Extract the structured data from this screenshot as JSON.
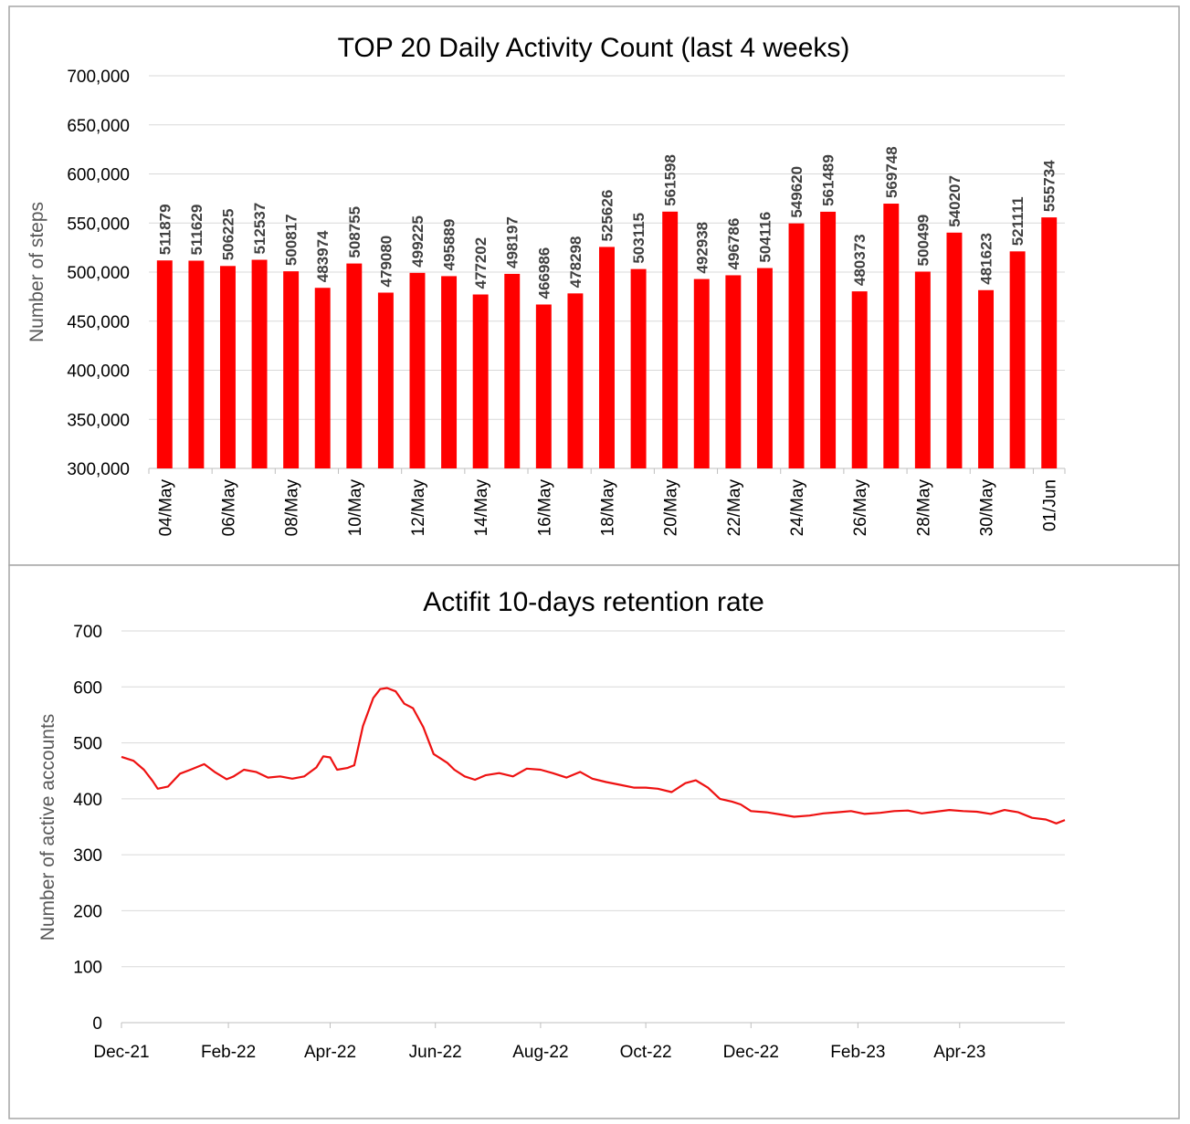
{
  "colors": {
    "bar": "#ff0000",
    "line": "#ee1111",
    "frame": "#a6a6a6",
    "grid": "#d9d9d9"
  },
  "chart_data": [
    {
      "type": "bar",
      "title": "TOP 20 Daily Activity Count (last 4 weeks)",
      "xlabel": "",
      "ylabel": "Number of steps",
      "ylim": [
        300000,
        700000
      ],
      "yticks": [
        300000,
        350000,
        400000,
        450000,
        500000,
        550000,
        600000,
        650000,
        700000
      ],
      "ytick_labels": [
        "300,000",
        "350,000",
        "400,000",
        "450,000",
        "500,000",
        "550,000",
        "600,000",
        "650,000",
        "700,000"
      ],
      "grid": true,
      "categories": [
        "04/May",
        "05/May",
        "06/May",
        "07/May",
        "08/May",
        "09/May",
        "10/May",
        "11/May",
        "12/May",
        "13/May",
        "14/May",
        "15/May",
        "16/May",
        "17/May",
        "18/May",
        "19/May",
        "20/May",
        "21/May",
        "22/May",
        "23/May",
        "24/May",
        "25/May",
        "26/May",
        "27/May",
        "28/May",
        "29/May",
        "30/May",
        "31/May",
        "01/Jun"
      ],
      "xtick_labels": [
        "04/May",
        "",
        "06/May",
        "",
        "08/May",
        "",
        "10/May",
        "",
        "12/May",
        "",
        "14/May",
        "",
        "16/May",
        "",
        "18/May",
        "",
        "20/May",
        "",
        "22/May",
        "",
        "24/May",
        "",
        "26/May",
        "",
        "28/May",
        "",
        "30/May",
        "",
        "01/Jun"
      ],
      "values": [
        511879,
        511629,
        506225,
        512537,
        500817,
        483974,
        508755,
        479080,
        499225,
        495889,
        477202,
        498197,
        466986,
        478298,
        525626,
        503115,
        561598,
        492938,
        496786,
        504116,
        549620,
        561489,
        480373,
        569748,
        500499,
        540207,
        481623,
        521111,
        555734
      ],
      "data_labels": [
        "511879",
        "511629",
        "506225",
        "512537",
        "500817",
        "483974",
        "508755",
        "479080",
        "499225",
        "495889",
        "477202",
        "498197",
        "466986",
        "478298",
        "525626",
        "503115",
        "561598",
        "492938",
        "496786",
        "504116",
        "549620",
        "561489",
        "480373",
        "569748",
        "500499",
        "540207",
        "481623",
        "521111",
        "555734"
      ]
    },
    {
      "type": "line",
      "title": "Actifit 10-days retention rate",
      "xlabel": "",
      "ylabel": "Number of active accounts",
      "ylim": [
        0,
        700
      ],
      "yticks": [
        0,
        100,
        200,
        300,
        400,
        500,
        600,
        700
      ],
      "ytick_labels": [
        "0",
        "100",
        "200",
        "300",
        "400",
        "500",
        "600",
        "700"
      ],
      "xlim": [
        "2021-12-01",
        "2023-06-01"
      ],
      "xticks": [
        "2021-12-01",
        "2022-02-01",
        "2022-04-01",
        "2022-06-01",
        "2022-08-01",
        "2022-10-01",
        "2022-12-01",
        "2023-02-01",
        "2023-04-01"
      ],
      "xtick_labels": [
        "Dec-21",
        "Feb-22",
        "Apr-22",
        "Jun-22",
        "Aug-22",
        "Oct-22",
        "Dec-22",
        "Feb-23",
        "Apr-23"
      ],
      "grid": true,
      "series": [
        {
          "x": [
            "2021-12-01",
            "2021-12-08",
            "2021-12-14",
            "2021-12-19",
            "2021-12-22",
            "2021-12-28",
            "2022-01-04",
            "2022-01-10",
            "2022-01-18",
            "2022-01-24",
            "2022-01-31",
            "2022-02-04",
            "2022-02-10",
            "2022-02-17",
            "2022-02-24",
            "2022-03-03",
            "2022-03-10",
            "2022-03-17",
            "2022-03-24",
            "2022-03-28",
            "2022-04-01",
            "2022-04-05",
            "2022-04-11",
            "2022-04-15",
            "2022-04-20",
            "2022-04-26",
            "2022-04-30",
            "2022-05-04",
            "2022-05-09",
            "2022-05-14",
            "2022-05-19",
            "2022-05-25",
            "2022-05-31",
            "2022-06-04",
            "2022-06-08",
            "2022-06-12",
            "2022-06-18",
            "2022-06-24",
            "2022-06-30",
            "2022-07-08",
            "2022-07-16",
            "2022-07-24",
            "2022-08-01",
            "2022-08-08",
            "2022-08-16",
            "2022-08-24",
            "2022-08-31",
            "2022-09-08",
            "2022-09-16",
            "2022-09-24",
            "2022-10-01",
            "2022-10-08",
            "2022-10-16",
            "2022-10-24",
            "2022-10-30",
            "2022-11-06",
            "2022-11-13",
            "2022-11-20",
            "2022-11-25",
            "2022-12-01",
            "2022-12-10",
            "2022-12-18",
            "2022-12-26",
            "2023-01-04",
            "2023-01-12",
            "2023-01-20",
            "2023-01-28",
            "2023-02-05",
            "2023-02-14",
            "2023-02-22",
            "2023-03-02",
            "2023-03-10",
            "2023-03-18",
            "2023-03-26",
            "2023-04-03",
            "2023-04-11",
            "2023-04-19",
            "2023-04-27",
            "2023-05-05",
            "2023-05-13",
            "2023-05-21",
            "2023-05-27",
            "2023-06-01"
          ],
          "values": [
            475,
            468,
            452,
            432,
            418,
            422,
            445,
            452,
            462,
            448,
            435,
            440,
            452,
            448,
            438,
            440,
            436,
            440,
            456,
            476,
            474,
            452,
            455,
            460,
            530,
            580,
            596,
            598,
            592,
            570,
            562,
            528,
            480,
            472,
            464,
            452,
            440,
            434,
            442,
            446,
            440,
            454,
            452,
            446,
            438,
            448,
            436,
            430,
            425,
            420,
            420,
            418,
            412,
            428,
            433,
            420,
            400,
            395,
            390,
            378,
            376,
            372,
            368,
            370,
            374,
            376,
            378,
            373,
            375,
            378,
            379,
            374,
            377,
            380,
            378,
            377,
            373,
            380,
            376,
            366,
            363,
            356,
            362
          ]
        }
      ]
    }
  ]
}
